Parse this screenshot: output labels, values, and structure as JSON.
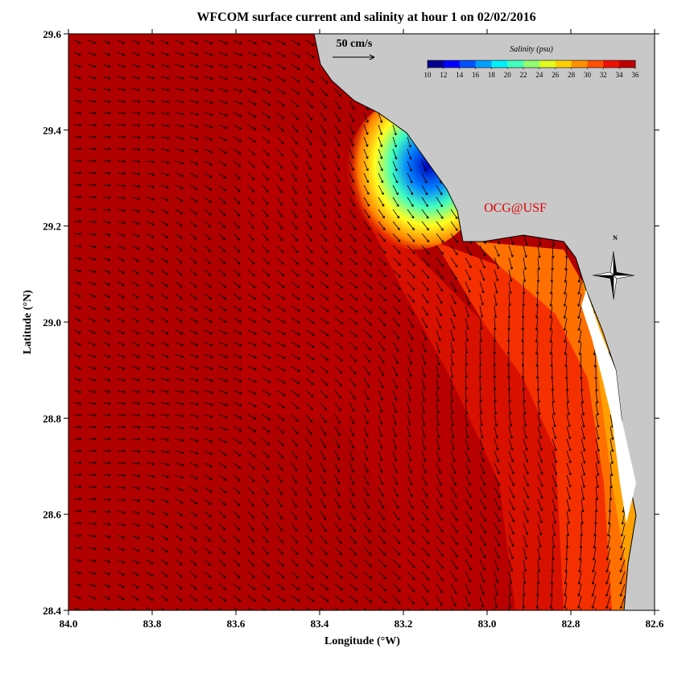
{
  "chart_data": {
    "type": "map",
    "title": "WFCOM surface current and salinity at hour 1 on 02/02/2016",
    "x_label": "Longitude (°W)",
    "y_label": "Latitude (°N)",
    "xlim": [
      84.0,
      82.6
    ],
    "ylim": [
      28.4,
      29.6
    ],
    "xticks": [
      {
        "value": 84.0,
        "label": "84.0"
      },
      83.8,
      83.6,
      83.4,
      83.2,
      {
        "value": 83.0,
        "label": "83.0"
      },
      82.8,
      82.6
    ],
    "yticks": [
      28.4,
      28.6,
      28.8,
      {
        "value": 29.0,
        "label": "29.0"
      },
      29.2,
      29.4,
      29.6
    ],
    "colorbar": {
      "title": "Salinity (psu)",
      "range": [
        10,
        36
      ],
      "ticks": [
        10,
        12,
        14,
        16,
        18,
        20,
        22,
        24,
        26,
        28,
        30,
        32,
        34,
        36
      ],
      "colormap": [
        "#00008f",
        "#0000ff",
        "#0050ff",
        "#00a0ff",
        "#00f0ff",
        "#40ffbf",
        "#8fff70",
        "#dfff20",
        "#ffd000",
        "#ff9000",
        "#ff5000",
        "#ef1000",
        "#bf0000"
      ]
    },
    "scale_label": "50 cm/s",
    "credit": "OCG@USF",
    "compass_label": "N"
  }
}
